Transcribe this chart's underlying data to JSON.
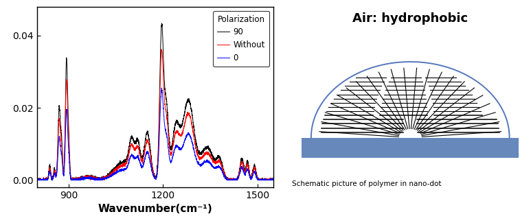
{
  "title_right": "Air: hydrophobic",
  "caption_right": "Schematic picture of polymer in nano-dot",
  "xlabel": "Wavenumber(cm⁻¹)",
  "xlim": [
    800,
    1550
  ],
  "ylim": [
    -0.002,
    0.048
  ],
  "yticks": [
    0.0,
    0.02,
    0.04
  ],
  "xticks": [
    900,
    1200,
    1500
  ],
  "legend_title": "Polarization",
  "legend_entries": [
    "90",
    "Without",
    "0"
  ],
  "line_colors": [
    "black",
    "red",
    "blue"
  ],
  "background_color": "#ffffff",
  "circle_color": "#5577bb",
  "substrate_color": "#6688bb"
}
